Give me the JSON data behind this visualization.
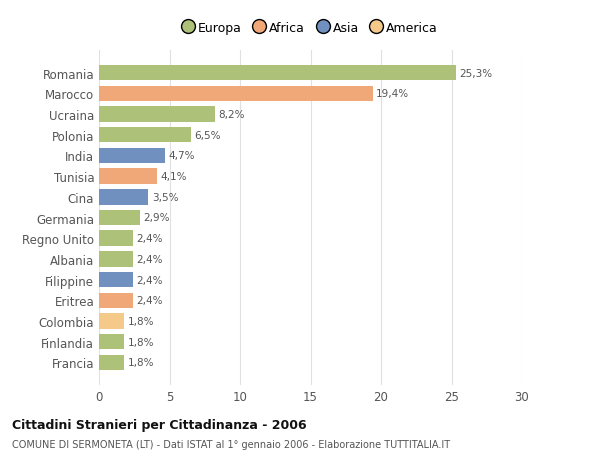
{
  "countries": [
    "Francia",
    "Finlandia",
    "Colombia",
    "Eritrea",
    "Filippine",
    "Albania",
    "Regno Unito",
    "Germania",
    "Cina",
    "Tunisia",
    "India",
    "Polonia",
    "Ucraina",
    "Marocco",
    "Romania"
  ],
  "values": [
    1.8,
    1.8,
    1.8,
    2.4,
    2.4,
    2.4,
    2.4,
    2.9,
    3.5,
    4.1,
    4.7,
    6.5,
    8.2,
    19.4,
    25.3
  ],
  "labels": [
    "1,8%",
    "1,8%",
    "1,8%",
    "2,4%",
    "2,4%",
    "2,4%",
    "2,4%",
    "2,9%",
    "3,5%",
    "4,1%",
    "4,7%",
    "6,5%",
    "8,2%",
    "19,4%",
    "25,3%"
  ],
  "colors": [
    "#adc178",
    "#adc178",
    "#f5c98a",
    "#f0a878",
    "#7090bf",
    "#adc178",
    "#adc178",
    "#adc178",
    "#7090bf",
    "#f0a878",
    "#7090bf",
    "#adc178",
    "#adc178",
    "#f0a878",
    "#adc178"
  ],
  "legend_labels": [
    "Europa",
    "Africa",
    "Asia",
    "America"
  ],
  "legend_colors": [
    "#adc178",
    "#f0a878",
    "#7090bf",
    "#f5c98a"
  ],
  "title": "Cittadini Stranieri per Cittadinanza - 2006",
  "subtitle": "COMUNE DI SERMONETA (LT) - Dati ISTAT al 1° gennaio 2006 - Elaborazione TUTTITALIA.IT",
  "xlim": [
    0,
    30
  ],
  "xticks": [
    0,
    5,
    10,
    15,
    20,
    25,
    30
  ],
  "background_color": "#ffffff",
  "grid_color": "#e0e0e0"
}
